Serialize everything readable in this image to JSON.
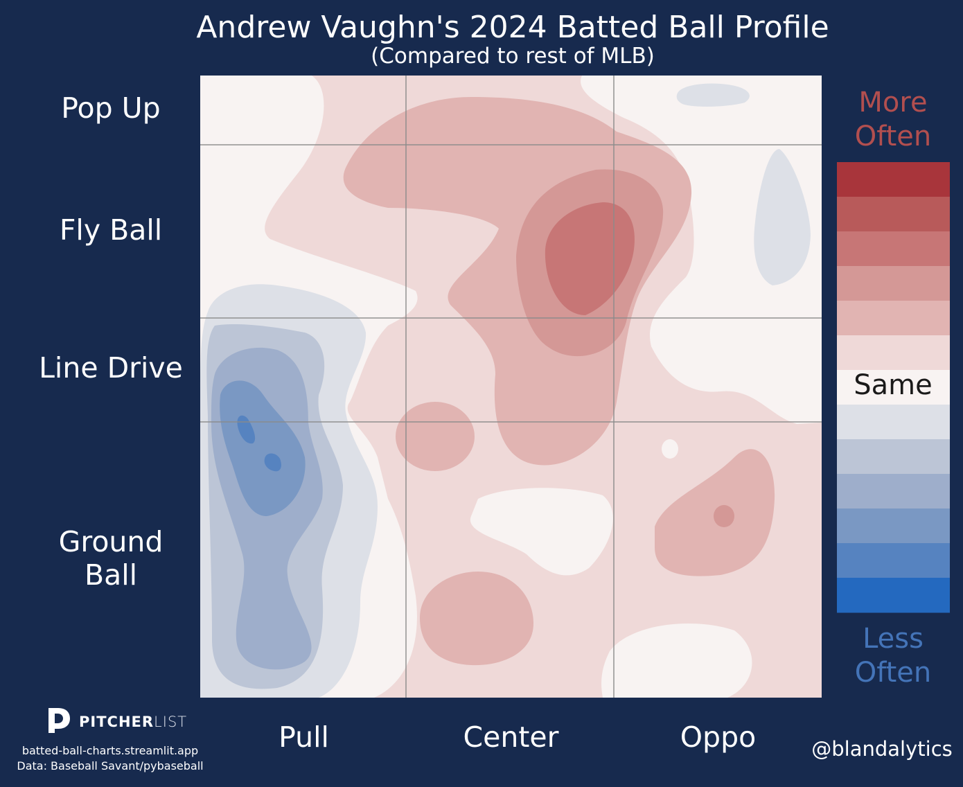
{
  "chart_data": {
    "type": "contour",
    "title": "Andrew Vaughn's 2024 Batted Ball Profile",
    "subtitle": "(Compared to rest of MLB)",
    "y_categories": [
      "Pop Up",
      "Fly Ball",
      "Line Drive",
      "Ground Ball"
    ],
    "x_categories": [
      "Pull",
      "Center",
      "Oppo"
    ],
    "colorbar": {
      "top_label": "More Often",
      "middle_label": "Same",
      "bottom_label": "Less Often",
      "colors": [
        "#a8353b",
        "#b85a5a",
        "#c77676",
        "#d49896",
        "#e1b4b2",
        "#efd9d8",
        "#f8f3f2",
        "#dde0e7",
        "#bcc5d6",
        "#9eaecb",
        "#7a98c3",
        "#5683c0",
        "#2469bf"
      ]
    },
    "grid": true
  },
  "footer": {
    "brand_bold": "PITCHER",
    "brand_light": "LIST",
    "site": "batted-ball-charts.streamlit.app",
    "source": "Data: Baseball Savant/pybaseball",
    "handle": "@blandalytics"
  }
}
